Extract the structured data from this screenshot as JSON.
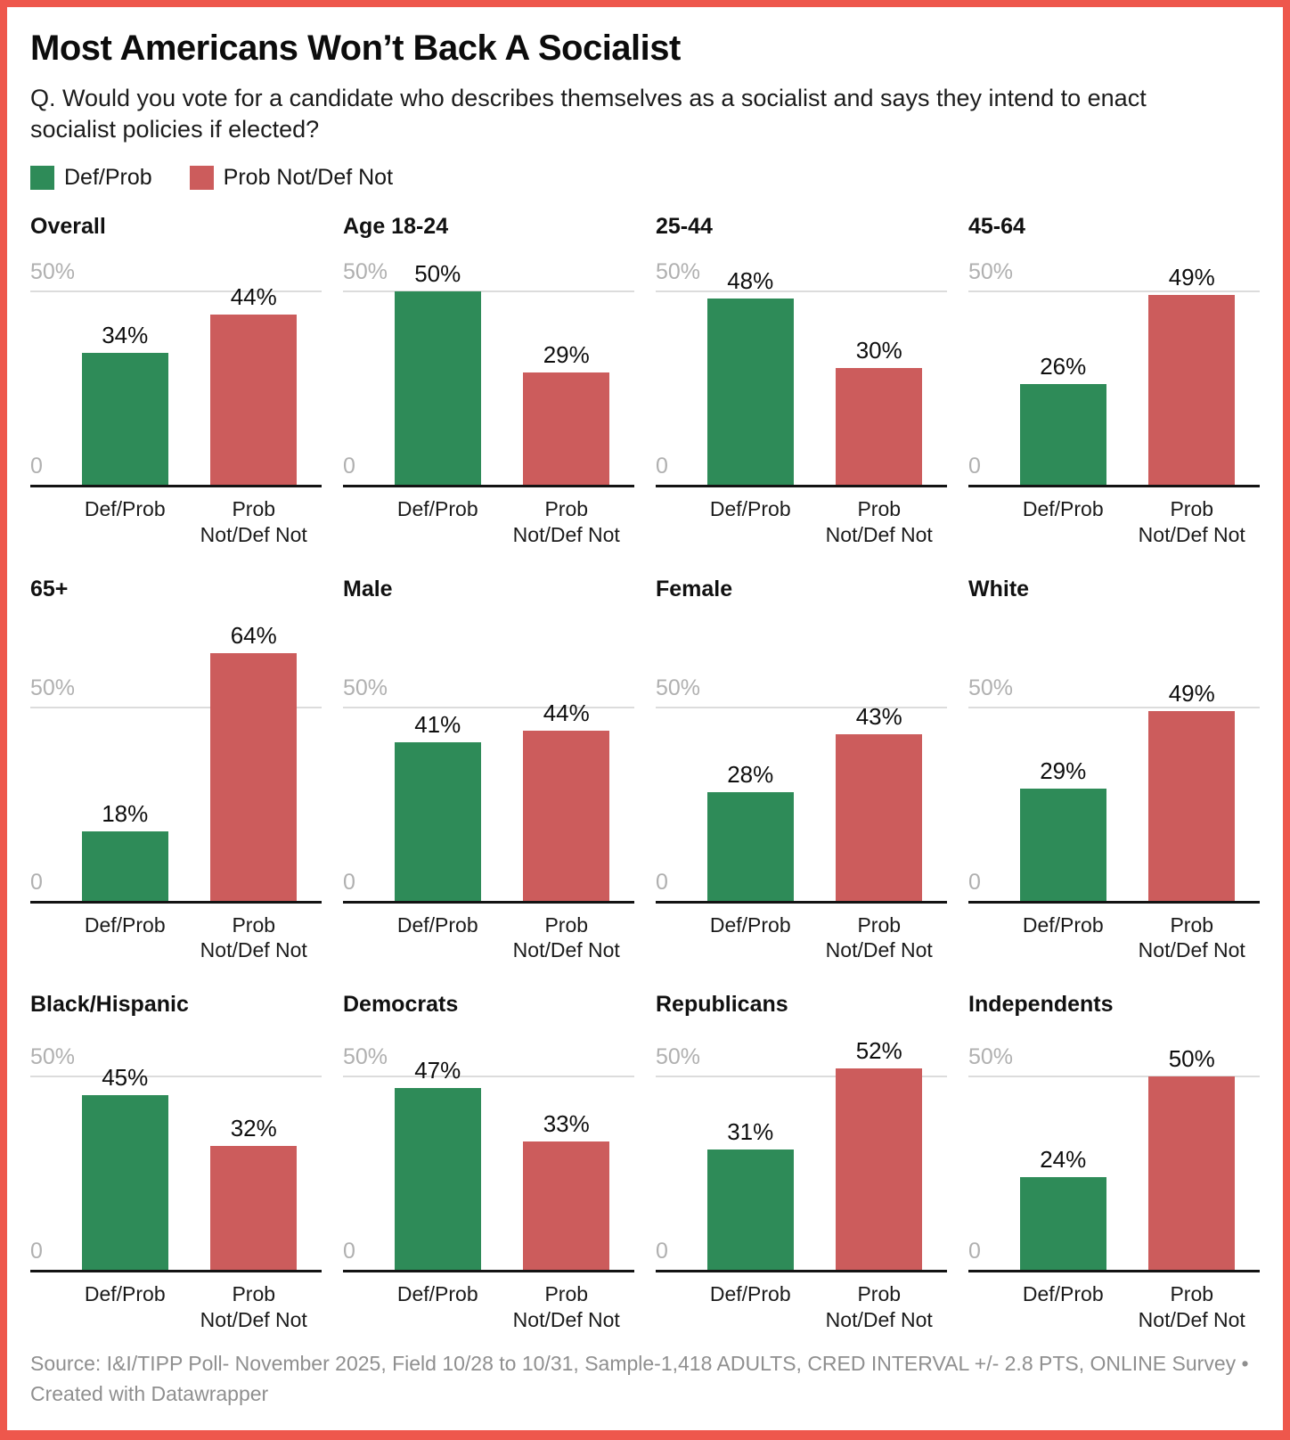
{
  "header": {
    "title": "Most Americans Won’t Back A Socialist",
    "subtitle": "Q. Would you vote for a candidate who describes themselves as a socialist and says they intend to enact socialist policies if elected?",
    "legend": [
      {
        "label": "Def/Prob",
        "color": "#2e8b58"
      },
      {
        "label": "Prob Not/Def Not",
        "color": "#cc5c5c"
      }
    ]
  },
  "colors": {
    "frame_border": "#ee574c",
    "green_bar": "#2e8b58",
    "red_bar": "#cc5c5c",
    "gridline": "#dcdcdc",
    "axis_line": "#131313",
    "tick_text": "#b0b0b0",
    "footer_text": "#8f8f8f"
  },
  "chart_data": {
    "type": "bar",
    "layout": "small-multiples 4 columns x 3 rows, shared scale",
    "unit": "%",
    "ylim": [
      0,
      64
    ],
    "y_gridline_value": 50,
    "y_gridline_label": "50%",
    "y_zero_label": "0",
    "grid": "single 50% gridline per panel, black zero baseline",
    "legend_position": "top-left under subtitle",
    "categories": [
      "Def/Prob",
      "Prob Not/Def Not"
    ],
    "category_label_lines": [
      [
        "Def/Prob"
      ],
      [
        "Prob",
        "Not/Def Not"
      ]
    ],
    "series_colors": [
      "#2e8b58",
      "#cc5c5c"
    ],
    "columns_per_row": 4,
    "panels": [
      {
        "title": "Overall",
        "values": [
          34,
          44
        ]
      },
      {
        "title": "Age 18-24",
        "values": [
          50,
          29
        ]
      },
      {
        "title": "25-44",
        "values": [
          48,
          30
        ]
      },
      {
        "title": "45-64",
        "values": [
          26,
          49
        ]
      },
      {
        "title": "65+",
        "values": [
          18,
          64
        ]
      },
      {
        "title": "Male",
        "values": [
          41,
          44
        ]
      },
      {
        "title": "Female",
        "values": [
          28,
          43
        ]
      },
      {
        "title": "White",
        "values": [
          29,
          49
        ]
      },
      {
        "title": "Black/Hispanic",
        "values": [
          45,
          32
        ]
      },
      {
        "title": "Democrats",
        "values": [
          47,
          33
        ]
      },
      {
        "title": "Republicans",
        "values": [
          31,
          52
        ]
      },
      {
        "title": "Independents",
        "values": [
          24,
          50
        ]
      }
    ]
  },
  "footer": {
    "source": "Source: I&I/TIPP Poll- November 2025, Field 10/28 to 10/31, Sample-1,418 ADULTS, CRED INTERVAL +/- 2.8 PTS, ONLINE Survey • Created with Datawrapper"
  }
}
